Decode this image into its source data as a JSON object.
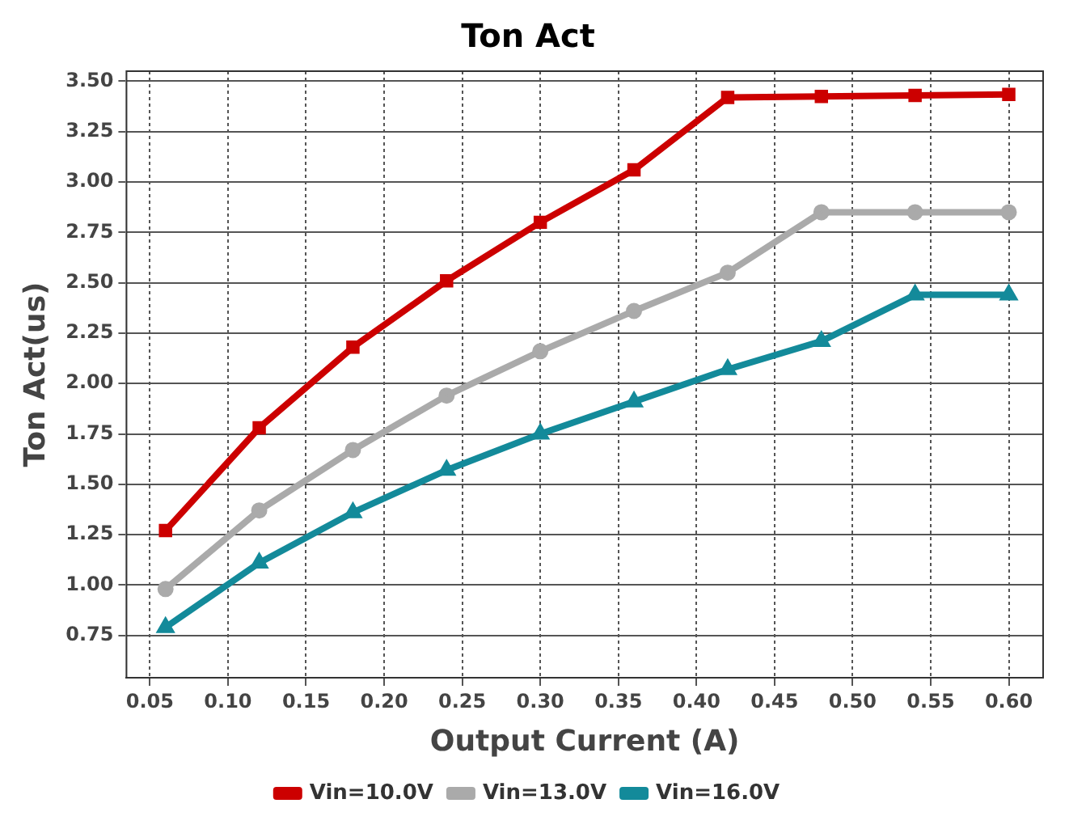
{
  "chart_data": {
    "type": "line",
    "title": "Ton Act",
    "xlabel": "Output Current (A)",
    "ylabel": "Ton Act(us)",
    "x": [
      0.06,
      0.12,
      0.18,
      0.24,
      0.3,
      0.36,
      0.42,
      0.48,
      0.54,
      0.6
    ],
    "series": [
      {
        "name": "Vin=10.0V",
        "color": "#cc0000",
        "marker": "square",
        "values": [
          1.27,
          1.78,
          2.18,
          2.51,
          2.8,
          3.06,
          3.42,
          3.425,
          3.43,
          3.435
        ]
      },
      {
        "name": "Vin=13.0V",
        "color": "#aaaaaa",
        "marker": "circle",
        "values": [
          0.98,
          1.37,
          1.67,
          1.94,
          2.16,
          2.36,
          2.55,
          2.85,
          2.85,
          2.85
        ]
      },
      {
        "name": "Vin=16.0V",
        "color": "#138a9a",
        "marker": "triangle",
        "values": [
          0.79,
          1.11,
          1.36,
          1.57,
          1.75,
          1.91,
          2.07,
          2.21,
          2.44,
          2.44
        ]
      }
    ],
    "xlim": [
      0.035,
      0.622
    ],
    "xticks": [
      {
        "value": 0.05,
        "label": "0.05"
      },
      {
        "value": 0.1,
        "label": "0.10"
      },
      {
        "value": 0.15,
        "label": "0.15"
      },
      {
        "value": 0.2,
        "label": "0.20"
      },
      {
        "value": 0.25,
        "label": "0.25"
      },
      {
        "value": 0.3,
        "label": "0.30"
      },
      {
        "value": 0.35,
        "label": "0.35"
      },
      {
        "value": 0.4,
        "label": "0.40"
      },
      {
        "value": 0.45,
        "label": "0.45"
      },
      {
        "value": 0.5,
        "label": "0.50"
      },
      {
        "value": 0.55,
        "label": "0.55"
      },
      {
        "value": 0.6,
        "label": "0.60"
      }
    ],
    "ylim": [
      0.54,
      3.55
    ],
    "yticks": [
      {
        "value": 0.75,
        "label": "0.75"
      },
      {
        "value": 1,
        "label": "1.00"
      },
      {
        "value": 1.25,
        "label": "1.25"
      },
      {
        "value": 1.5,
        "label": "1.50"
      },
      {
        "value": 1.75,
        "label": "1.75"
      },
      {
        "value": 2,
        "label": "2.00"
      },
      {
        "value": 2.25,
        "label": "2.25"
      },
      {
        "value": 2.5,
        "label": "2.50"
      },
      {
        "value": 2.75,
        "label": "2.75"
      },
      {
        "value": 3,
        "label": "3.00"
      },
      {
        "value": 3.25,
        "label": "3.25"
      },
      {
        "value": 3.5,
        "label": "3.50"
      }
    ],
    "grid": true,
    "legend": "bottom",
    "line_style": "solid"
  }
}
